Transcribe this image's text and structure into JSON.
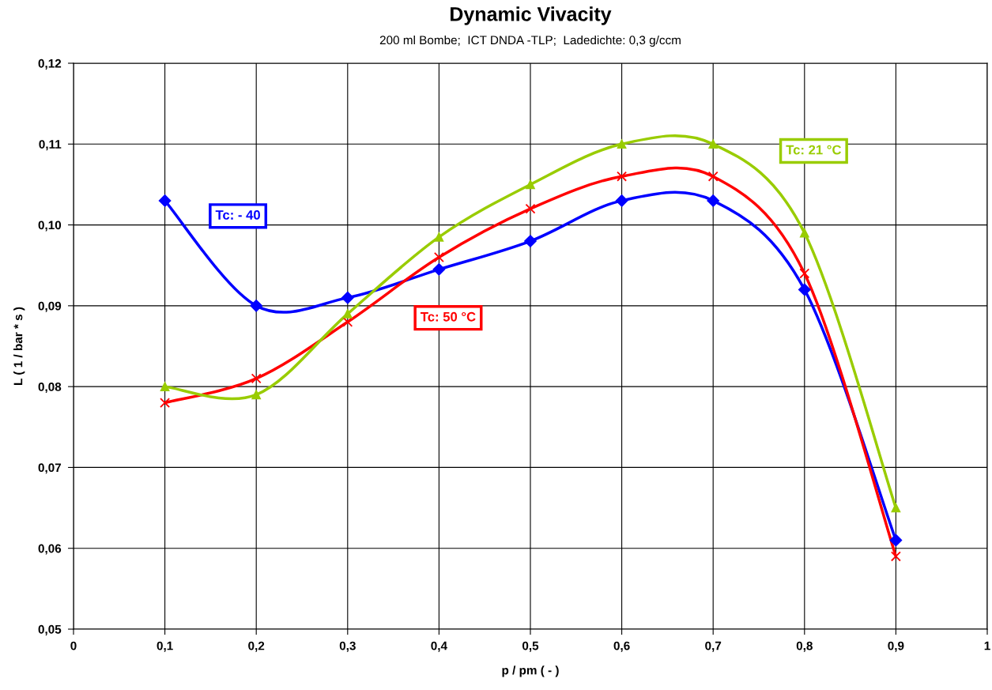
{
  "chart_data": {
    "type": "line",
    "title": "Dynamic Vivacity",
    "subtitle": "200 ml Bombe;  ICT DNDA -TLP;  Ladedichte: 0,3 g/ccm",
    "xlabel": "p / pm ( - )",
    "ylabel": "L ( 1 / bar * s )",
    "x": [
      0.1,
      0.2,
      0.3,
      0.4,
      0.5,
      0.6,
      0.7,
      0.8,
      0.9
    ],
    "series": [
      {
        "name": "Tc: - 40",
        "color": "#0000ff",
        "marker": "diamond",
        "values": [
          0.103,
          0.09,
          0.091,
          0.0945,
          0.098,
          0.103,
          0.103,
          0.092,
          0.061
        ]
      },
      {
        "name": "Tc: 50 °C",
        "color": "#ff0000",
        "marker": "cross",
        "values": [
          0.078,
          0.081,
          0.088,
          0.096,
          0.102,
          0.106,
          0.106,
          0.094,
          0.059
        ]
      },
      {
        "name": "Tc: 21 °C",
        "color": "#99cc00",
        "marker": "triangle",
        "values": [
          0.08,
          0.079,
          0.089,
          0.0985,
          0.105,
          0.11,
          0.11,
          0.099,
          0.065
        ]
      }
    ],
    "xlim": [
      0,
      1
    ],
    "xticks": [
      0,
      {
        "value": 0.1,
        "label": "0,1"
      },
      {
        "value": 0.2,
        "label": "0,2"
      },
      {
        "value": 0.3,
        "label": "0,3"
      },
      {
        "value": 0.4,
        "label": "0,4"
      },
      {
        "value": 0.5,
        "label": "0,5"
      },
      {
        "value": 0.6,
        "label": "0,6"
      },
      {
        "value": 0.7,
        "label": "0,7"
      },
      {
        "value": 0.8,
        "label": "0,8"
      },
      {
        "value": 0.9,
        "label": "0,9"
      },
      1
    ],
    "ylim": [
      0.05,
      0.12
    ],
    "yticks": [
      {
        "value": 0.05,
        "label": "0,05"
      },
      {
        "value": 0.06,
        "label": "0,06"
      },
      {
        "value": 0.07,
        "label": "0,07"
      },
      {
        "value": 0.08,
        "label": "0,08"
      },
      {
        "value": 0.09,
        "label": "0,09"
      },
      {
        "value": 0.1,
        "label": "0,10"
      },
      {
        "value": 0.11,
        "label": "0,11"
      },
      {
        "value": 0.12,
        "label": "0,12"
      }
    ],
    "grid": true,
    "legend": false,
    "line_style": "solid"
  }
}
